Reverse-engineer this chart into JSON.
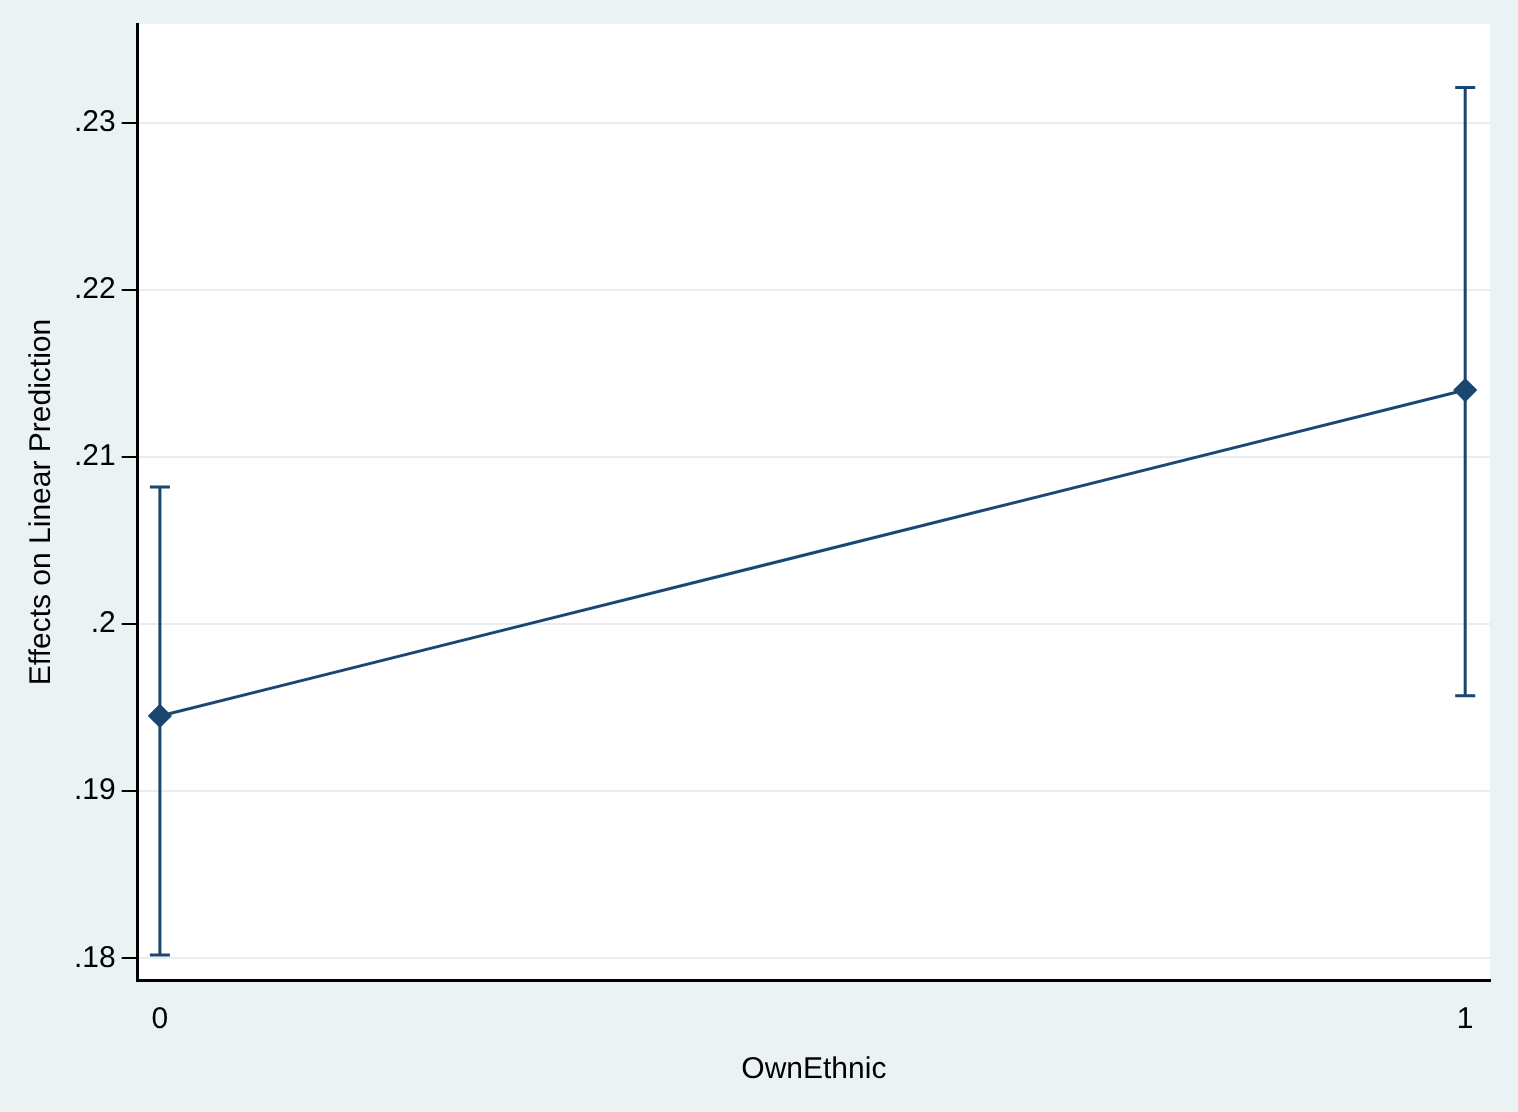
{
  "chart_data": {
    "type": "line",
    "xlabel": "OwnEthnic",
    "ylabel": "Effects on Linear Prediction",
    "x": [
      0,
      1
    ],
    "series": [
      {
        "color": "#1a476f",
        "values": [
          0.1945,
          0.214
        ],
        "errors": [
          [
            0.1802,
            0.2082
          ],
          [
            0.1957,
            0.2321
          ]
        ]
      }
    ],
    "xlim": [
      -0.017,
      1.019
    ],
    "xticks": [
      0,
      1
    ],
    "ylim": [
      0.1787,
      0.2359
    ],
    "yticks": [
      {
        "value": 0.18,
        "label": ".18"
      },
      {
        "value": 0.19,
        "label": ".19"
      },
      {
        "value": 0.2,
        "label": ".2"
      },
      {
        "value": 0.21,
        "label": ".21"
      },
      {
        "value": 0.22,
        "label": ".22"
      },
      {
        "value": 0.23,
        "label": ".23"
      }
    ],
    "grid": "y",
    "legend": false,
    "marker": "diamond",
    "line_style": "solid"
  }
}
